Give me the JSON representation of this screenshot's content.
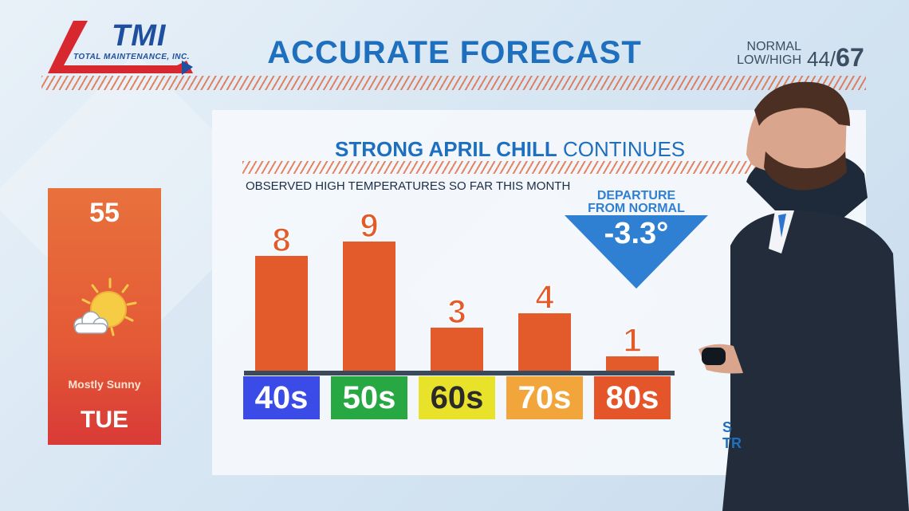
{
  "header": {
    "logo_main": "TMI",
    "logo_sub": "TOTAL MAINTENANCE, INC.",
    "title": "ACCURATE FORECAST",
    "normal_label_1": "NORMAL",
    "normal_label_2": "LOW/HIGH",
    "normal_low": "44/",
    "normal_high": "67"
  },
  "forecast_card": {
    "temp": "55",
    "condition": "Mostly Sunny",
    "day": "TUE",
    "icon": "sun-cloud-icon"
  },
  "departure": {
    "label_1": "DEPARTURE",
    "label_2": "FROM NORMAL",
    "value": "-3.3°"
  },
  "side_text": "S\nTR",
  "colors": {
    "bar": "#e35a2b",
    "title_blue": "#1f6fbf",
    "cat_40s": "#3b4be8",
    "cat_50s": "#27a843",
    "cat_60s": "#e8e22b",
    "cat_70s": "#f1a53a",
    "cat_80s": "#e45529"
  },
  "chart_data": {
    "type": "bar",
    "title_bold": "STRONG APRIL CHILL",
    "title_rest": "CONTINUES",
    "subtitle": "OBSERVED HIGH TEMPERATURES SO FAR THIS MONTH",
    "categories": [
      "40s",
      "50s",
      "60s",
      "70s",
      "80s"
    ],
    "values": [
      8,
      9,
      3,
      4,
      1
    ],
    "ylim": [
      0,
      10
    ],
    "xlabel": "",
    "ylabel": "",
    "grid": false
  }
}
